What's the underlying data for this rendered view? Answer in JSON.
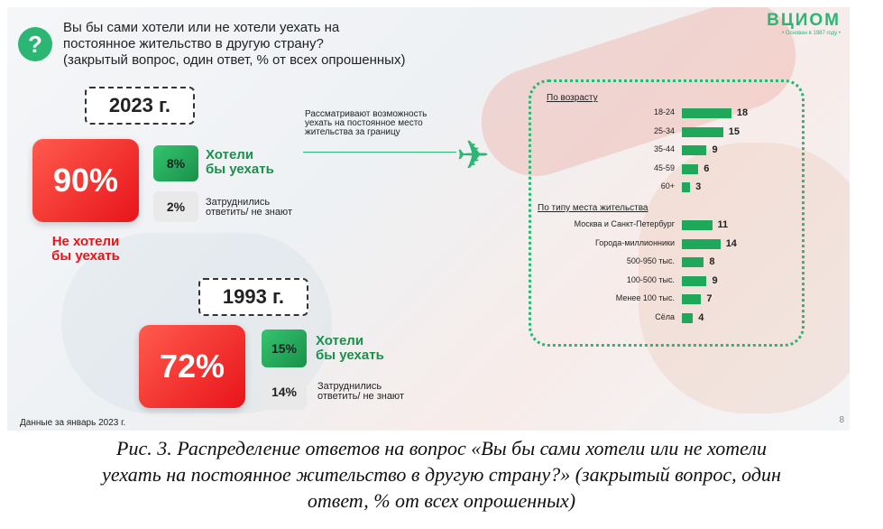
{
  "question": {
    "line1": "Вы бы сами хотели или не хотели уехать на",
    "line2": "постоянное жительство в другую страну?",
    "line3": "(закрытый вопрос, один ответ, % от всех опрошенных)"
  },
  "brand": {
    "logo": "ВЦИОМ",
    "sub": "• Основан в 1987 году •"
  },
  "years": [
    {
      "year": "2023 г.",
      "not_want": "90%",
      "not_want_label_1": "Не хотели",
      "not_want_label_2": "бы уехать",
      "want": "8%",
      "want_label_1": "Хотели",
      "want_label_2": "бы уехать",
      "difficult": "2%",
      "difficult_label_1": "Затруднились",
      "difficult_label_2": "ответить/ не знают"
    },
    {
      "year": "1993 г.",
      "not_want": "72%",
      "want": "15%",
      "want_label_1": "Хотели",
      "want_label_2": "бы уехать",
      "difficult": "14%",
      "difficult_label_1": "Затруднились",
      "difficult_label_2": "ответить/ не знают"
    }
  ],
  "consider": {
    "line1": "Рассматривают возможность",
    "line2": "уехать на постоянное место",
    "line3": "жительства за границу"
  },
  "colors": {
    "green": "#1fa85a",
    "red": "#e8141a",
    "accent": "#2bb673"
  },
  "icons": {
    "question": "question-icon",
    "plane": "airplane-icon"
  },
  "chart_data": {
    "type": "bar",
    "groups": [
      {
        "name": "По возрасту",
        "categories": [
          "18-24",
          "25-34",
          "35-44",
          "45-59",
          "60+"
        ],
        "values": [
          18,
          15,
          9,
          6,
          3
        ]
      },
      {
        "name": "По типу места жительства",
        "categories": [
          "Москва и Санкт-Петербург",
          "Города-миллионники",
          "500-950 тыс.",
          "100-500 тыс.",
          "Менее 100 тыс.",
          "Сёла"
        ],
        "values": [
          11,
          14,
          8,
          9,
          7,
          4
        ]
      }
    ]
  },
  "footnote": "Данные за январь 2023 г.",
  "page_number": "8",
  "caption": {
    "line1": "Рис. 3. Распределение ответов на вопрос «Вы бы сами хотели или не хотели",
    "line2": "уехать на постоянное жительство в другую страну?» (закрытый вопрос, один",
    "line3": "ответ, % от всех опрошенных)"
  }
}
